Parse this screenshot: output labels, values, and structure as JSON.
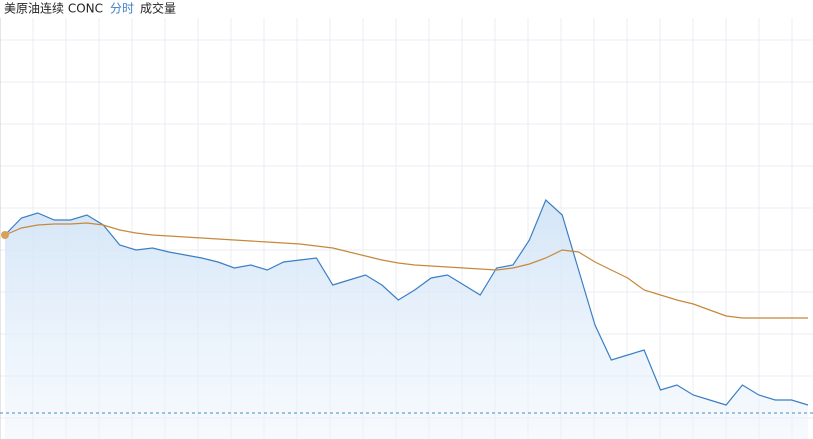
{
  "chart_data": {
    "type": "line",
    "title": {
      "name": "美原油连续 CONC",
      "mode": "分时",
      "extra": "成交量"
    },
    "categories": [
      null,
      null,
      null,
      null,
      null,
      null,
      null,
      null,
      null,
      null,
      null,
      null,
      null,
      null,
      null,
      null,
      null,
      null,
      null,
      null,
      null,
      null,
      null,
      null,
      null,
      null,
      null,
      null,
      null,
      null,
      null,
      null,
      null,
      null,
      null,
      null,
      null,
      null,
      null,
      null,
      null,
      null,
      null,
      null,
      null,
      null,
      null,
      null,
      null,
      null
    ],
    "ylim": [
      0,
      421
    ],
    "reference_line": 26,
    "grid": true,
    "series": [
      {
        "color": "#3b7fc4",
        "fill": true,
        "values": [
          204,
          221,
          226,
          219,
          219,
          224,
          214,
          194,
          189,
          191,
          187,
          184,
          181,
          177,
          171,
          174,
          169,
          177,
          179,
          181,
          154,
          159,
          164,
          154,
          139,
          149,
          161,
          164,
          154,
          144,
          171,
          174,
          199,
          239,
          224,
          169,
          114,
          79,
          84,
          89,
          49,
          54,
          44,
          39,
          34,
          54,
          44,
          39,
          39,
          34
        ]
      },
      {
        "color": "#c8883a",
        "fill": false,
        "values": [
          204,
          211,
          214,
          215,
          215,
          216,
          214,
          209,
          206,
          204,
          203,
          202,
          201,
          200,
          199,
          198,
          197,
          196,
          195,
          193,
          191,
          187,
          183,
          179,
          176,
          174,
          173,
          172,
          171,
          170,
          169,
          171,
          175,
          181,
          189,
          187,
          177,
          169,
          161,
          149,
          144,
          139,
          135,
          129,
          123,
          121,
          121,
          121,
          121,
          121
        ]
      }
    ]
  }
}
